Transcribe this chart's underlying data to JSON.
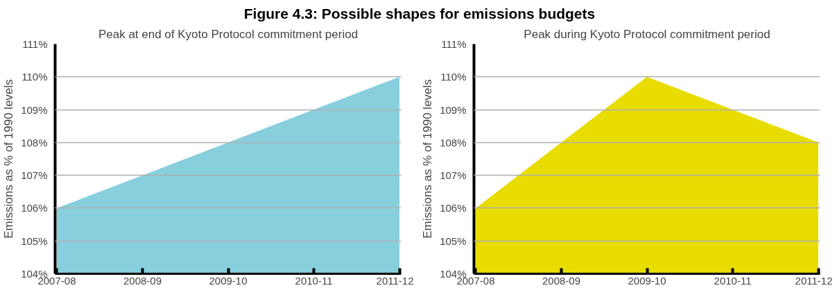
{
  "chart_data": [
    {
      "type": "area",
      "title": "Figure 4.3: Possible shapes for emissions budgets",
      "subtitle": "Peak at end of Kyoto Protocol commitment period",
      "ylabel": "Emissions as % of 1990 levels",
      "categories": [
        "2007-08",
        "2008-09",
        "2009-10",
        "2010-11",
        "2011-12"
      ],
      "series": [
        {
          "color": "#88cfdd",
          "values": [
            106,
            107,
            108,
            109,
            110
          ]
        }
      ],
      "ylim": [
        104,
        111
      ],
      "yticks": [
        {
          "value": 104,
          "label": "104%"
        },
        {
          "value": 105,
          "label": "105%"
        },
        {
          "value": 106,
          "label": "106%"
        },
        {
          "value": 107,
          "label": "107%"
        },
        {
          "value": 108,
          "label": "108%"
        },
        {
          "value": 109,
          "label": "109%"
        },
        {
          "value": 110,
          "label": "110%"
        },
        {
          "value": 111,
          "label": "111%"
        }
      ],
      "grid": "y"
    },
    {
      "type": "area",
      "subtitle": "Peak during Kyoto Protocol commitment period",
      "ylabel": "Emissions as % of 1990 levels",
      "categories": [
        "2007-08",
        "2008-09",
        "2009-10",
        "2010-11",
        "2011-12"
      ],
      "series": [
        {
          "color": "#e8dc00",
          "values": [
            106,
            108,
            110,
            109,
            108
          ]
        }
      ],
      "ylim": [
        104,
        111
      ],
      "yticks": [
        {
          "value": 104,
          "label": "104%"
        },
        {
          "value": 105,
          "label": "105%"
        },
        {
          "value": 106,
          "label": "106%"
        },
        {
          "value": 107,
          "label": "107%"
        },
        {
          "value": 108,
          "label": "108%"
        },
        {
          "value": 109,
          "label": "109%"
        },
        {
          "value": 110,
          "label": "110%"
        },
        {
          "value": 111,
          "label": "111%"
        }
      ],
      "grid": "y"
    }
  ]
}
